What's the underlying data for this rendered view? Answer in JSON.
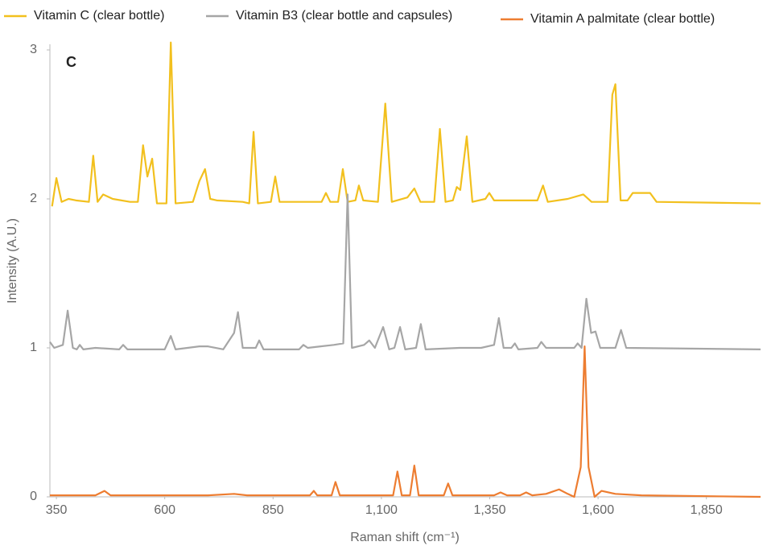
{
  "chart_data": {
    "type": "line",
    "annotation": "C",
    "xlabel": "Raman shift (cm⁻¹)",
    "ylabel": "Intensity (A.U.)",
    "xlim": [
      335,
      1975
    ],
    "ylim": [
      0,
      3.1
    ],
    "xticks": [
      350,
      600,
      850,
      {
        "value": 1100,
        "label": "1,100"
      },
      {
        "value": 1350,
        "label": "1,350"
      },
      {
        "value": 1600,
        "label": "1,600"
      },
      {
        "value": 1850,
        "label": "1,850"
      }
    ],
    "yticks": [
      0,
      1,
      2,
      3
    ],
    "grid": false,
    "legend": "top",
    "series": [
      {
        "name": "Vitamin C (clear bottle)",
        "color": "#f2c01e",
        "x": [
          340,
          350,
          362,
          378,
          395,
          425,
          435,
          445,
          458,
          480,
          520,
          538,
          550,
          560,
          571,
          582,
          604,
          614,
          625,
          665,
          680,
          693,
          705,
          720,
          780,
          795,
          805,
          815,
          845,
          855,
          865,
          890,
          935,
          962,
          972,
          982,
          1000,
          1011,
          1022,
          1040,
          1048,
          1058,
          1092,
          1109,
          1124,
          1160,
          1176,
          1190,
          1222,
          1235,
          1248,
          1265,
          1274,
          1282,
          1297,
          1310,
          1340,
          1349,
          1360,
          1420,
          1460,
          1473,
          1484,
          1530,
          1566,
          1585,
          1622,
          1633,
          1640,
          1652,
          1668,
          1680,
          1720,
          1735,
          1975
        ],
        "values": [
          1.95,
          2.14,
          1.98,
          2.0,
          1.99,
          1.98,
          2.29,
          1.98,
          2.03,
          2.0,
          1.98,
          1.98,
          2.36,
          2.15,
          2.27,
          1.97,
          1.97,
          3.05,
          1.97,
          1.98,
          2.12,
          2.2,
          2.0,
          1.99,
          1.98,
          1.97,
          2.45,
          1.97,
          1.98,
          2.15,
          1.98,
          1.98,
          1.98,
          1.98,
          2.04,
          1.98,
          1.98,
          2.2,
          1.98,
          1.99,
          2.09,
          1.99,
          1.98,
          2.64,
          1.98,
          2.01,
          2.07,
          1.98,
          1.98,
          2.47,
          1.98,
          1.99,
          2.08,
          2.06,
          2.42,
          1.98,
          2.0,
          2.04,
          1.99,
          1.99,
          1.99,
          2.09,
          1.98,
          2.0,
          2.03,
          1.98,
          1.98,
          2.7,
          2.77,
          1.99,
          1.99,
          2.04,
          2.04,
          1.98,
          1.97
        ]
      },
      {
        "name": "Vitamin B3 (clear bottle and capsules)",
        "color": "#a6a6a6",
        "x": [
          335,
          345,
          365,
          376,
          388,
          397,
          404,
          412,
          440,
          495,
          504,
          514,
          600,
          614,
          625,
          680,
          700,
          735,
          760,
          769,
          780,
          810,
          818,
          828,
          910,
          920,
          930,
          960,
          990,
          1012,
          1022,
          1032,
          1060,
          1072,
          1085,
          1104,
          1118,
          1130,
          1143,
          1155,
          1180,
          1191,
          1202,
          1280,
          1330,
          1360,
          1371,
          1382,
          1400,
          1408,
          1416,
          1460,
          1469,
          1480,
          1545,
          1553,
          1562,
          1573,
          1584,
          1594,
          1605,
          1640,
          1653,
          1665,
          1975
        ],
        "values": [
          1.04,
          1.0,
          1.02,
          1.25,
          1.0,
          0.99,
          1.02,
          0.99,
          1.0,
          0.99,
          1.02,
          0.99,
          0.99,
          1.08,
          0.99,
          1.01,
          1.01,
          0.99,
          1.1,
          1.24,
          1.0,
          1.0,
          1.05,
          0.99,
          0.99,
          1.02,
          1.0,
          1.01,
          1.02,
          1.03,
          2.03,
          1.0,
          1.02,
          1.05,
          1.0,
          1.14,
          0.99,
          1.0,
          1.14,
          0.99,
          1.0,
          1.16,
          0.99,
          1.0,
          1.0,
          1.02,
          1.2,
          1.0,
          1.0,
          1.03,
          0.99,
          1.0,
          1.04,
          1.0,
          1.0,
          1.03,
          1.0,
          1.33,
          1.1,
          1.11,
          1.0,
          1.0,
          1.12,
          1.0,
          0.99
        ]
      },
      {
        "name": "Vitamin A palmitate (clear bottle)",
        "color": "#ed7d31",
        "x": [
          335,
          440,
          461,
          475,
          600,
          700,
          760,
          790,
          935,
          944,
          952,
          985,
          994,
          1004,
          1127,
          1137,
          1147,
          1166,
          1176,
          1186,
          1244,
          1254,
          1264,
          1300,
          1360,
          1375,
          1390,
          1420,
          1434,
          1448,
          1480,
          1510,
          1530,
          1545,
          1560,
          1569,
          1578,
          1592,
          1608,
          1640,
          1700,
          1975
        ],
        "values": [
          0.01,
          0.01,
          0.04,
          0.01,
          0.01,
          0.01,
          0.02,
          0.01,
          0.01,
          0.04,
          0.01,
          0.01,
          0.1,
          0.01,
          0.01,
          0.17,
          0.01,
          0.01,
          0.21,
          0.01,
          0.01,
          0.09,
          0.01,
          0.01,
          0.01,
          0.03,
          0.01,
          0.01,
          0.03,
          0.01,
          0.02,
          0.05,
          0.02,
          0.0,
          0.2,
          1.01,
          0.2,
          0.0,
          0.04,
          0.02,
          0.01,
          0.0
        ]
      }
    ]
  }
}
